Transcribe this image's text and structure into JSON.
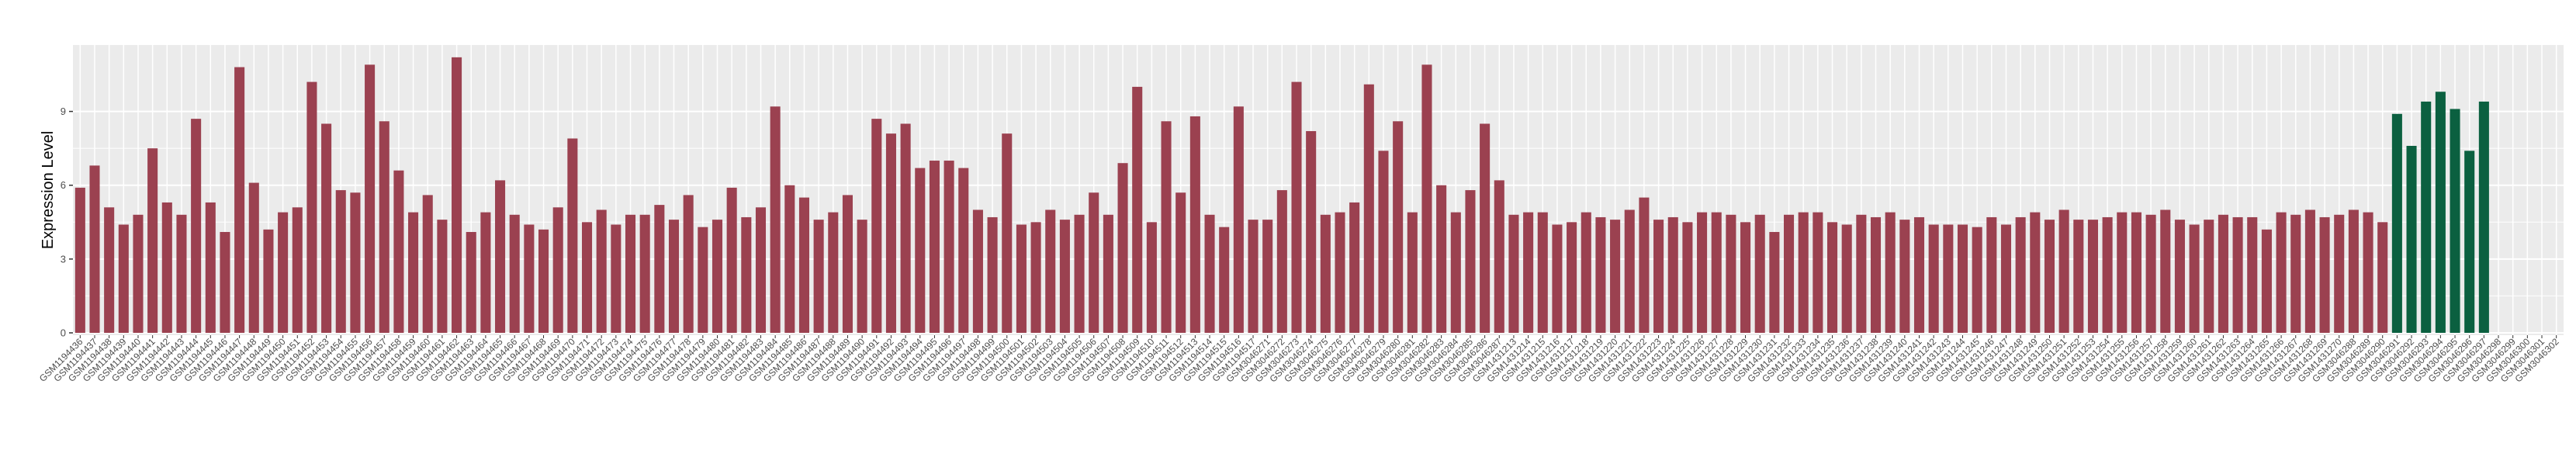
{
  "chart_data": {
    "type": "bar",
    "title": "",
    "xlabel": "",
    "ylabel": "Expression Level",
    "ylim": [
      0,
      11.7
    ],
    "yticks": [
      0,
      3,
      6,
      9
    ],
    "grid": true,
    "legend": "none",
    "colors": {
      "group1": "#9b4150",
      "group2": "#0b6040",
      "panel": "#ebebeb",
      "grid": "#ffffff"
    },
    "categories": [
      "GSM1194436",
      "GSM1194437",
      "GSM1194438",
      "GSM1194439",
      "GSM1194440",
      "GSM1194441",
      "GSM1194442",
      "GSM1194443",
      "GSM1194444",
      "GSM1194445",
      "GSM1194446",
      "GSM1194447",
      "GSM1194448",
      "GSM1194449",
      "GSM1194450",
      "GSM1194451",
      "GSM1194452",
      "GSM1194453",
      "GSM1194454",
      "GSM1194455",
      "GSM1194456",
      "GSM1194457",
      "GSM1194458",
      "GSM1194459",
      "GSM1194460",
      "GSM1194461",
      "GSM1194462",
      "GSM1194463",
      "GSM1194464",
      "GSM1194465",
      "GSM1194466",
      "GSM1194467",
      "GSM1194468",
      "GSM1194469",
      "GSM1194470",
      "GSM1194471",
      "GSM1194472",
      "GSM1194473",
      "GSM1194474",
      "GSM1194475",
      "GSM1194476",
      "GSM1194477",
      "GSM1194478",
      "GSM1194479",
      "GSM1194480",
      "GSM1194481",
      "GSM1194482",
      "GSM1194483",
      "GSM1194484",
      "GSM1194485",
      "GSM1194486",
      "GSM1194487",
      "GSM1194488",
      "GSM1194489",
      "GSM1194490",
      "GSM1194491",
      "GSM1194492",
      "GSM1194493",
      "GSM1194494",
      "GSM1194495",
      "GSM1194496",
      "GSM1194497",
      "GSM1194498",
      "GSM1194499",
      "GSM1194500",
      "GSM1194501",
      "GSM1194502",
      "GSM1194503",
      "GSM1194504",
      "GSM1194505",
      "GSM1194506",
      "GSM1194507",
      "GSM1194508",
      "GSM1194509",
      "GSM1194510",
      "GSM1194511",
      "GSM1194512",
      "GSM1194513",
      "GSM1194514",
      "GSM1194515",
      "GSM1194516",
      "GSM1194517",
      "GSM3046271",
      "GSM3046272",
      "GSM3046273",
      "GSM3046274",
      "GSM3046275",
      "GSM3046276",
      "GSM3046277",
      "GSM3046278",
      "GSM3046279",
      "GSM3046280",
      "GSM3046281",
      "GSM3046282",
      "GSM3046283",
      "GSM3046284",
      "GSM3046285",
      "GSM3046286",
      "GSM3046287",
      "GSM1431213",
      "GSM1431214",
      "GSM1431215",
      "GSM1431216",
      "GSM1431217",
      "GSM1431218",
      "GSM1431219",
      "GSM1431220",
      "GSM1431221",
      "GSM1431222",
      "GSM1431223",
      "GSM1431224",
      "GSM1431225",
      "GSM1431226",
      "GSM1431227",
      "GSM1431228",
      "GSM1431229",
      "GSM1431230",
      "GSM1431231",
      "GSM1431232",
      "GSM1431233",
      "GSM1431234",
      "GSM1431235",
      "GSM1431236",
      "GSM1431237",
      "GSM1431238",
      "GSM1431239",
      "GSM1431240",
      "GSM1431241",
      "GSM1431242",
      "GSM1431243",
      "GSM1431244",
      "GSM1431245",
      "GSM1431246",
      "GSM1431247",
      "GSM1431248",
      "GSM1431249",
      "GSM1431250",
      "GSM1431251",
      "GSM1431252",
      "GSM1431253",
      "GSM1431254",
      "GSM1431255",
      "GSM1431256",
      "GSM1431257",
      "GSM1431258",
      "GSM1431259",
      "GSM1431260",
      "GSM1431261",
      "GSM1431262",
      "GSM1431263",
      "GSM1431264",
      "GSM1431265",
      "GSM1431266",
      "GSM1431267",
      "GSM1431268",
      "GSM1431269",
      "GSM1431270",
      "GSM3046288",
      "GSM3046289",
      "GSM3046290",
      "GSM3046291",
      "GSM3046292",
      "GSM3046293",
      "GSM3046294",
      "GSM3046295",
      "GSM3046296",
      "GSM3046297",
      "GSM3046298",
      "GSM3046299",
      "GSM3046300",
      "GSM3046301",
      "GSM3046302"
    ],
    "series": [
      {
        "values": [
          5.9,
          6.8,
          5.1,
          4.4,
          4.8,
          7.5,
          5.3,
          4.8,
          8.7,
          5.3,
          4.1,
          10.8,
          6.1,
          4.2,
          4.9,
          5.1,
          10.2,
          8.5,
          5.8,
          5.7,
          10.9,
          8.6,
          6.6,
          4.9,
          5.6,
          4.6,
          11.2,
          4.1,
          4.9,
          6.2,
          4.8,
          4.4,
          4.2,
          5.1,
          7.9,
          4.5,
          5.0,
          4.4,
          4.8,
          4.8,
          5.2,
          4.6,
          5.6,
          4.3,
          4.6,
          5.9,
          4.7,
          5.1,
          9.2,
          6.0,
          5.5,
          4.6,
          4.9,
          5.6,
          4.6,
          8.7,
          8.1,
          8.5,
          6.7,
          7.0,
          7.0,
          6.7,
          5.0,
          4.7,
          8.1,
          4.4,
          4.5,
          5.0,
          4.6,
          4.8,
          5.7,
          4.8,
          6.9,
          10.0,
          4.5,
          8.6,
          5.7,
          8.8,
          4.8,
          4.3,
          9.2,
          4.6,
          4.6,
          5.8,
          10.2,
          8.2,
          4.8,
          4.9,
          5.3,
          10.1,
          7.4,
          8.6,
          4.9,
          10.9,
          6.0,
          4.9,
          5.8,
          8.5,
          6.2,
          4.8,
          4.9,
          4.9,
          4.4,
          4.5,
          4.9,
          4.7,
          4.6,
          5.0,
          5.5,
          4.6,
          4.7,
          4.5,
          4.9,
          4.9,
          4.8,
          4.5,
          4.8,
          4.1,
          4.8,
          4.9,
          4.9,
          4.5,
          4.4,
          4.8,
          4.7,
          4.9,
          4.6,
          4.7,
          4.4,
          4.4,
          4.4,
          4.3,
          4.7,
          4.4,
          4.7,
          4.9,
          4.6,
          5.0,
          4.6,
          4.6,
          4.7,
          4.9,
          4.9,
          4.8,
          5.0,
          4.6,
          4.4,
          4.6,
          4.8,
          4.7,
          4.7,
          4.2,
          4.9,
          4.8,
          5.0,
          4.7,
          4.8,
          5.0,
          4.9,
          4.5,
          null,
          null,
          null,
          null,
          null,
          null,
          null,
          null,
          null,
          null,
          null,
          null
        ]
      },
      {
        "values": [
          null,
          null,
          null,
          null,
          null,
          null,
          null,
          null,
          null,
          null,
          null,
          null,
          null,
          null,
          null,
          null,
          null,
          null,
          null,
          null,
          null,
          null,
          null,
          null,
          null,
          null,
          null,
          null,
          null,
          null,
          null,
          null,
          null,
          null,
          null,
          null,
          null,
          null,
          null,
          null,
          null,
          null,
          null,
          null,
          null,
          null,
          null,
          null,
          null,
          null,
          null,
          null,
          null,
          null,
          null,
          null,
          null,
          null,
          null,
          null,
          null,
          null,
          null,
          null,
          null,
          null,
          null,
          null,
          null,
          null,
          null,
          null,
          null,
          null,
          null,
          null,
          null,
          null,
          null,
          null,
          null,
          null,
          null,
          null,
          null,
          null,
          null,
          null,
          null,
          null,
          null,
          null,
          null,
          null,
          null,
          null,
          null,
          null,
          null,
          null,
          null,
          null,
          null,
          null,
          null,
          null,
          null,
          null,
          null,
          null,
          null,
          null,
          null,
          null,
          null,
          null,
          null,
          null,
          null,
          null,
          null,
          null,
          null,
          null,
          null,
          null,
          null,
          null,
          null,
          null,
          null,
          null,
          null,
          null,
          null,
          null,
          null,
          null,
          null,
          null,
          null,
          null,
          null,
          null,
          null,
          null,
          null,
          null,
          null,
          null,
          null,
          null,
          null,
          null,
          null,
          null,
          null,
          null,
          null,
          null,
          8.9,
          7.6,
          9.4,
          9.8,
          9.1,
          7.4,
          9.4,
          null,
          null,
          null,
          null,
          null
        ]
      }
    ]
  }
}
